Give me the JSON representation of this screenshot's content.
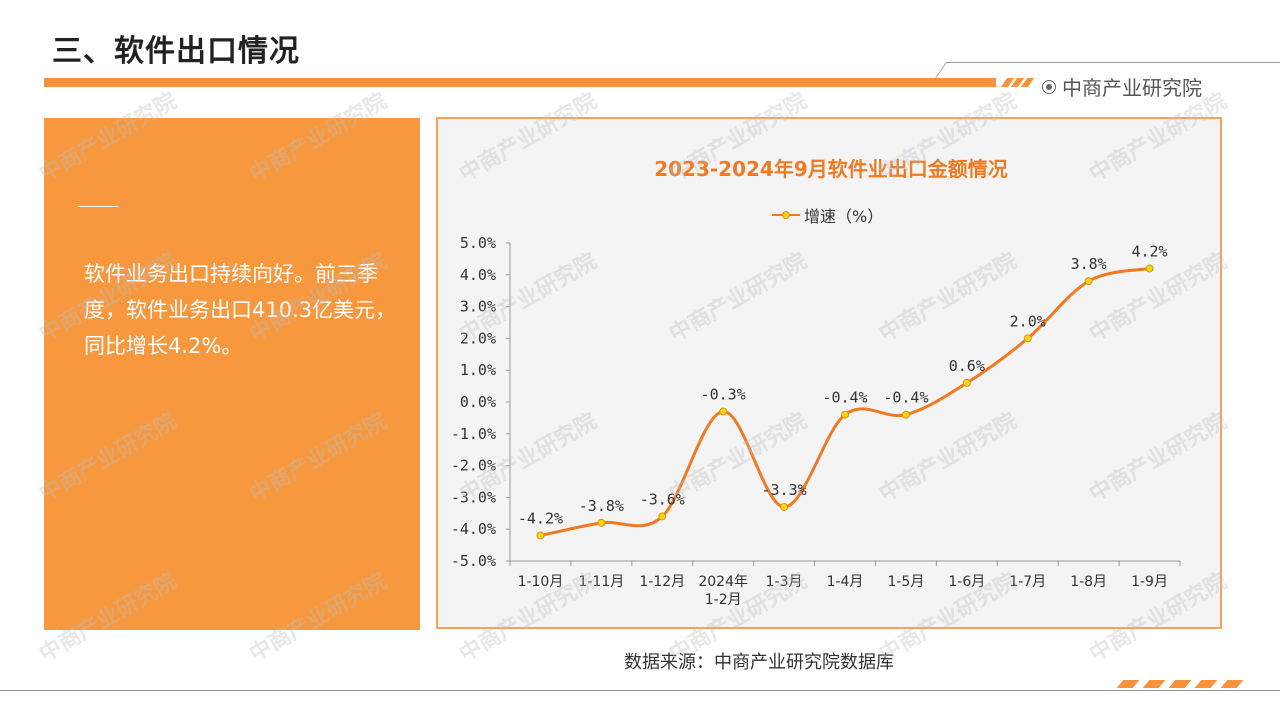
{
  "slide": {
    "title": "三、软件出口情况",
    "brand": "中商产业研究院",
    "body_text": "软件业务出口持续向好。前三季度，软件业务出口410.3亿美元，同比增长4.2%。",
    "source": "数据来源：中商产业研究院数据库",
    "watermark": "中商产业研究院",
    "accent_color": "#f7923a"
  },
  "chart_data": {
    "type": "line",
    "title": "2023-2024年9月软件业出口金额情况",
    "categories": [
      "1-10月",
      "1-11月",
      "1-12月",
      "2024年 1-2月",
      "1-3月",
      "1-4月",
      "1-5月",
      "1-6月",
      "1-7月",
      "1-8月",
      "1-9月"
    ],
    "series": [
      {
        "name": "增速（%）",
        "values": [
          -4.2,
          -3.8,
          -3.6,
          -0.3,
          -3.3,
          -0.4,
          -0.4,
          0.6,
          2.0,
          3.8,
          4.2
        ]
      }
    ],
    "data_labels": [
      "-4.2%",
      "-3.8%",
      "-3.6%",
      "-0.3%",
      "-3.3%",
      "-0.4%",
      "-0.4%",
      "0.6%",
      "2.0%",
      "3.8%",
      "4.2%"
    ],
    "y_ticks": [
      "5.0%",
      "4.0%",
      "3.0%",
      "2.0%",
      "1.0%",
      "0.0%",
      "-1.0%",
      "-2.0%",
      "-3.0%",
      "-4.0%",
      "-5.0%"
    ],
    "ylim": [
      -5,
      5
    ],
    "smooth": true,
    "grid": false,
    "legend": "top",
    "line_color": "#f07a22",
    "marker_color": "#ffd21f"
  }
}
